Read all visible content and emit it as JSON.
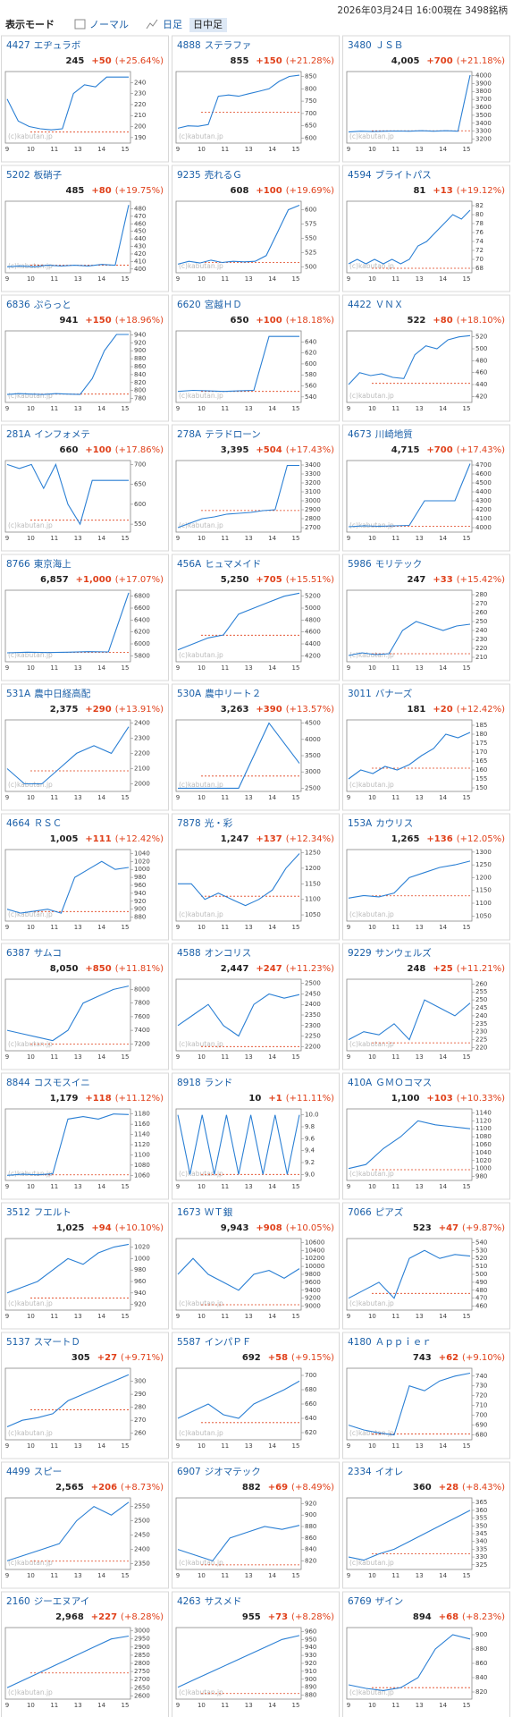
{
  "header": {
    "mode_label": "表示モード",
    "options": [
      "ノーマル",
      "日足",
      "日中足"
    ],
    "timestamp": "2026年03月24日 16:00現在 3498銘柄"
  },
  "watermark": "(c)kabutan.jp",
  "time_labels": [
    "9",
    "10",
    "11",
    "13",
    "14",
    "15"
  ],
  "cards": [
    {
      "code": "4427",
      "name": "エヂュラボ",
      "price": "245",
      "change": "+50",
      "pct": "(+25.64%)",
      "ylim": [
        185,
        250
      ],
      "yticks": [
        190,
        200,
        210,
        220,
        230,
        240
      ],
      "prev": 195,
      "values": [
        225,
        205,
        200,
        198,
        197,
        198,
        230,
        238,
        236,
        245,
        245,
        245
      ]
    },
    {
      "code": "4888",
      "name": "ステラファ",
      "price": "855",
      "change": "+150",
      "pct": "(+21.28%)",
      "ylim": [
        580,
        870
      ],
      "yticks": [
        600,
        650,
        700,
        750,
        800,
        850
      ],
      "prev": 705,
      "values": [
        640,
        650,
        648,
        655,
        770,
        775,
        770,
        780,
        790,
        800,
        830,
        850,
        855
      ]
    },
    {
      "code": "3480",
      "name": "ＪＳＢ",
      "price": "4,005",
      "change": "+700",
      "pct": "(+21.18%)",
      "ylim": [
        3150,
        4050
      ],
      "yticks": [
        3200,
        3300,
        3400,
        3500,
        3600,
        3700,
        3800,
        3900,
        4000
      ],
      "prev": 3305,
      "values": [
        3290,
        3300,
        3295,
        3300,
        3302,
        3300,
        3305,
        3300,
        3305,
        3300,
        4005
      ]
    },
    {
      "code": "5202",
      "name": "板硝子",
      "price": "485",
      "change": "+80",
      "pct": "(+19.75%)",
      "ylim": [
        395,
        490
      ],
      "yticks": [
        400,
        410,
        420,
        430,
        440,
        450,
        460,
        470,
        480
      ],
      "prev": 405,
      "values": [
        403,
        404,
        403,
        405,
        404,
        405,
        404,
        406,
        405,
        485
      ]
    },
    {
      "code": "9235",
      "name": "売れるＧ",
      "price": "608",
      "change": "+100",
      "pct": "(+19.69%)",
      "ylim": [
        490,
        615
      ],
      "yticks": [
        500,
        525,
        550,
        575,
        600
      ],
      "prev": 508,
      "values": [
        505,
        510,
        507,
        512,
        508,
        510,
        509,
        510,
        520,
        560,
        600,
        608
      ]
    },
    {
      "code": "4594",
      "name": "ブライトパス",
      "price": "81",
      "change": "+13",
      "pct": "(+19.12%)",
      "ylim": [
        67,
        83
      ],
      "yticks": [
        68,
        70,
        72,
        74,
        76,
        78,
        80,
        82
      ],
      "prev": 68,
      "values": [
        69,
        70,
        69,
        70,
        69,
        70,
        69,
        70,
        73,
        74,
        76,
        78,
        80,
        79,
        81
      ]
    },
    {
      "code": "6836",
      "name": "ぷらっと",
      "price": "941",
      "change": "+150",
      "pct": "(+18.96%)",
      "ylim": [
        770,
        950
      ],
      "yticks": [
        780,
        800,
        820,
        840,
        860,
        880,
        900,
        920,
        940
      ],
      "prev": 791,
      "values": [
        790,
        792,
        791,
        790,
        792,
        791,
        790,
        830,
        900,
        941,
        941
      ]
    },
    {
      "code": "6620",
      "name": "宮越ＨＤ",
      "price": "650",
      "change": "+100",
      "pct": "(+18.18%)",
      "ylim": [
        530,
        660
      ],
      "yticks": [
        540,
        560,
        580,
        600,
        620,
        640
      ],
      "prev": 550,
      "values": [
        550,
        552,
        551,
        550,
        551,
        552,
        650,
        650,
        650
      ]
    },
    {
      "code": "4422",
      "name": "ＶＮＸ",
      "price": "522",
      "change": "+80",
      "pct": "(+18.10%)",
      "ylim": [
        410,
        530
      ],
      "yticks": [
        420,
        440,
        460,
        480,
        500,
        520
      ],
      "prev": 442,
      "values": [
        440,
        460,
        455,
        458,
        452,
        450,
        490,
        505,
        500,
        515,
        520,
        522
      ]
    },
    {
      "code": "281A",
      "name": "インフォメテ",
      "price": "660",
      "change": "+100",
      "pct": "(+17.86%)",
      "ylim": [
        530,
        710
      ],
      "yticks": [
        550,
        600,
        650,
        700
      ],
      "prev": 560,
      "values": [
        700,
        690,
        700,
        640,
        700,
        600,
        550,
        660,
        660,
        660,
        660
      ]
    },
    {
      "code": "278A",
      "name": "テラドローン",
      "price": "3,395",
      "change": "+504",
      "pct": "(+17.43%)",
      "ylim": [
        2650,
        3450
      ],
      "yticks": [
        2700,
        2800,
        2900,
        3000,
        3100,
        3200,
        3300,
        3400
      ],
      "prev": 2891,
      "values": [
        2700,
        2750,
        2800,
        2820,
        2850,
        2860,
        2870,
        2890,
        2900,
        3395,
        3395
      ]
    },
    {
      "code": "4673",
      "name": "川崎地質",
      "price": "4,715",
      "change": "+700",
      "pct": "(+17.43%)",
      "ylim": [
        3950,
        4750
      ],
      "yticks": [
        4000,
        4100,
        4200,
        4300,
        4400,
        4500,
        4600,
        4700
      ],
      "prev": 4015,
      "values": [
        4010,
        4020,
        4015,
        4020,
        4025,
        4300,
        4300,
        4300,
        4715
      ]
    },
    {
      "code": "8766",
      "name": "東京海上",
      "price": "6,857",
      "change": "+1,000",
      "pct": "(+17.07%)",
      "ylim": [
        5700,
        6900
      ],
      "yticks": [
        5800,
        6000,
        6200,
        6400,
        6600,
        6800
      ],
      "prev": 5857,
      "values": [
        5850,
        5860,
        5855,
        5860,
        5870,
        5865,
        6857
      ]
    },
    {
      "code": "456A",
      "name": "ヒュマメイド",
      "price": "5,250",
      "change": "+705",
      "pct": "(+15.51%)",
      "ylim": [
        4100,
        5300
      ],
      "yticks": [
        4200,
        4400,
        4600,
        4800,
        5000,
        5200
      ],
      "prev": 4545,
      "values": [
        4300,
        4400,
        4500,
        4550,
        4900,
        5000,
        5100,
        5200,
        5250
      ]
    },
    {
      "code": "5986",
      "name": "モリテック",
      "price": "247",
      "change": "+33",
      "pct": "(+15.42%)",
      "ylim": [
        205,
        285
      ],
      "yticks": [
        210,
        220,
        230,
        240,
        250,
        260,
        270,
        280
      ],
      "prev": 214,
      "values": [
        212,
        215,
        213,
        214,
        240,
        250,
        245,
        240,
        245,
        247
      ]
    },
    {
      "code": "531A",
      "name": "農中日経高配",
      "price": "2,375",
      "change": "+290",
      "pct": "(+13.91%)",
      "ylim": [
        1950,
        2420
      ],
      "yticks": [
        2000,
        2100,
        2200,
        2300,
        2400
      ],
      "prev": 2085,
      "values": [
        2100,
        2000,
        2000,
        2100,
        2200,
        2250,
        2200,
        2375
      ]
    },
    {
      "code": "530A",
      "name": "農中リート２",
      "price": "3,263",
      "change": "+390",
      "pct": "(+13.57%)",
      "ylim": [
        2400,
        4600
      ],
      "yticks": [
        2500,
        3000,
        3500,
        4000,
        4500
      ],
      "prev": 2873,
      "values": [
        2500,
        2500,
        2500,
        4500,
        3263
      ]
    },
    {
      "code": "3011",
      "name": "バナーズ",
      "price": "181",
      "change": "+20",
      "pct": "(+12.42%)",
      "ylim": [
        148,
        188
      ],
      "yticks": [
        150,
        155,
        160,
        165,
        170,
        175,
        180,
        185
      ],
      "prev": 161,
      "values": [
        155,
        160,
        158,
        162,
        160,
        163,
        168,
        172,
        180,
        178,
        181
      ]
    },
    {
      "code": "4664",
      "name": "ＲＳＣ",
      "price": "1,005",
      "change": "+111",
      "pct": "(+12.42%)",
      "ylim": [
        870,
        1050
      ],
      "yticks": [
        880,
        900,
        920,
        940,
        960,
        980,
        1000,
        1020,
        1040
      ],
      "prev": 894,
      "values": [
        900,
        890,
        895,
        900,
        890,
        980,
        1000,
        1020,
        1000,
        1005
      ]
    },
    {
      "code": "7878",
      "name": "光・彩",
      "price": "1,247",
      "change": "+137",
      "pct": "(+12.34%)",
      "ylim": [
        1030,
        1260
      ],
      "yticks": [
        1050,
        1100,
        1150,
        1200,
        1250
      ],
      "prev": 1110,
      "values": [
        1150,
        1150,
        1100,
        1120,
        1100,
        1080,
        1100,
        1130,
        1200,
        1247
      ]
    },
    {
      "code": "153A",
      "name": "カウリス",
      "price": "1,265",
      "change": "+136",
      "pct": "(+12.05%)",
      "ylim": [
        1030,
        1310
      ],
      "yticks": [
        1050,
        1100,
        1150,
        1200,
        1250,
        1300
      ],
      "prev": 1129,
      "values": [
        1120,
        1130,
        1125,
        1140,
        1200,
        1220,
        1240,
        1250,
        1265
      ]
    },
    {
      "code": "6387",
      "name": "サムコ",
      "price": "8,050",
      "change": "+850",
      "pct": "(+11.81%)",
      "ylim": [
        7100,
        8150
      ],
      "yticks": [
        7200,
        7400,
        7600,
        7800,
        8000
      ],
      "prev": 7200,
      "values": [
        7400,
        7350,
        7300,
        7250,
        7400,
        7800,
        7900,
        8000,
        8050
      ]
    },
    {
      "code": "4588",
      "name": "オンコリス",
      "price": "2,447",
      "change": "+247",
      "pct": "(+11.23%)",
      "ylim": [
        2180,
        2520
      ],
      "yticks": [
        2200,
        2250,
        2300,
        2350,
        2400,
        2450,
        2500
      ],
      "prev": 2200,
      "values": [
        2300,
        2350,
        2400,
        2300,
        2250,
        2400,
        2450,
        2430,
        2447
      ]
    },
    {
      "code": "9229",
      "name": "サンウェルズ",
      "price": "248",
      "change": "+25",
      "pct": "(+11.21%)",
      "ylim": [
        218,
        263
      ],
      "yticks": [
        220,
        225,
        230,
        235,
        240,
        245,
        250,
        255,
        260
      ],
      "prev": 223,
      "values": [
        225,
        230,
        228,
        235,
        225,
        250,
        245,
        240,
        248
      ]
    },
    {
      "code": "8844",
      "name": "コスモスイニ",
      "price": "1,179",
      "change": "+118",
      "pct": "(+11.12%)",
      "ylim": [
        1050,
        1190
      ],
      "yticks": [
        1060,
        1080,
        1100,
        1120,
        1140,
        1160,
        1180
      ],
      "prev": 1061,
      "values": [
        1060,
        1062,
        1061,
        1063,
        1170,
        1175,
        1170,
        1180,
        1179
      ]
    },
    {
      "code": "8918",
      "name": "ランド",
      "price": "10",
      "change": "+1",
      "pct": "(+11.11%)",
      "ylim": [
        8.9,
        10.1
      ],
      "yticks": [
        {
          "value": 9,
          "label": "9.0"
        },
        9.2,
        9.4,
        9.6,
        9.8,
        {
          "value": 10,
          "label": "10.0"
        }
      ],
      "prev": 9,
      "values": [
        10,
        9,
        10,
        9,
        10,
        9,
        10,
        9,
        10,
        9,
        10
      ]
    },
    {
      "code": "410A",
      "name": "ＧＭＯコマス",
      "price": "1,100",
      "change": "+103",
      "pct": "(+10.33%)",
      "ylim": [
        970,
        1150
      ],
      "yticks": [
        980,
        1000,
        1020,
        1040,
        1060,
        1080,
        1100,
        1120,
        1140
      ],
      "prev": 997,
      "values": [
        1000,
        1010,
        1050,
        1080,
        1120,
        1110,
        1105,
        1100
      ]
    },
    {
      "code": "3512",
      "name": "フエルト",
      "price": "1,025",
      "change": "+94",
      "pct": "(+10.10%)",
      "ylim": [
        910,
        1035
      ],
      "yticks": [
        920,
        940,
        960,
        980,
        1000,
        1020
      ],
      "prev": 931,
      "values": [
        940,
        950,
        960,
        980,
        1000,
        990,
        1010,
        1020,
        1025
      ]
    },
    {
      "code": "1673",
      "name": "ＷＴ銀",
      "price": "9,943",
      "change": "+908",
      "pct": "(+10.05%)",
      "ylim": [
        8900,
        10700
      ],
      "yticks": [
        9000,
        9200,
        9400,
        9600,
        9800,
        10000,
        10200,
        10400,
        10600
      ],
      "prev": 9035,
      "values": [
        9800,
        10200,
        9800,
        9600,
        9400,
        9800,
        9900,
        9700,
        9943
      ]
    },
    {
      "code": "7066",
      "name": "ピアズ",
      "price": "523",
      "change": "+47",
      "pct": "(+9.87%)",
      "ylim": [
        455,
        545
      ],
      "yticks": [
        460,
        470,
        480,
        490,
        500,
        510,
        520,
        530,
        540
      ],
      "prev": 476,
      "values": [
        470,
        480,
        490,
        470,
        520,
        530,
        520,
        525,
        523
      ]
    },
    {
      "code": "5137",
      "name": "スマートＤ",
      "price": "305",
      "change": "+27",
      "pct": "(+9.71%)",
      "ylim": [
        255,
        310
      ],
      "yticks": [
        260,
        270,
        280,
        290,
        300
      ],
      "prev": 278,
      "values": [
        265,
        270,
        272,
        275,
        285,
        290,
        295,
        300,
        305
      ]
    },
    {
      "code": "5587",
      "name": "インパＰＦ",
      "price": "692",
      "change": "+58",
      "pct": "(+9.15%)",
      "ylim": [
        610,
        710
      ],
      "yticks": [
        620,
        640,
        660,
        680,
        700
      ],
      "prev": 634,
      "values": [
        640,
        650,
        660,
        645,
        640,
        660,
        670,
        680,
        692
      ]
    },
    {
      "code": "4180",
      "name": "Ａｐｐｉｅｒ",
      "price": "743",
      "change": "+62",
      "pct": "(+9.10%)",
      "ylim": [
        675,
        748
      ],
      "yticks": [
        680,
        690,
        700,
        710,
        720,
        730,
        740
      ],
      "prev": 681,
      "values": [
        690,
        685,
        682,
        680,
        730,
        725,
        735,
        740,
        743
      ]
    },
    {
      "code": "4499",
      "name": "スピー",
      "price": "2,565",
      "change": "+206",
      "pct": "(+8.73%)",
      "ylim": [
        2330,
        2580
      ],
      "yticks": [
        2350,
        2400,
        2450,
        2500,
        2550
      ],
      "prev": 2359,
      "values": [
        2360,
        2380,
        2400,
        2420,
        2500,
        2550,
        2520,
        2565
      ]
    },
    {
      "code": "6907",
      "name": "ジオマテック",
      "price": "882",
      "change": "+69",
      "pct": "(+8.49%)",
      "ylim": [
        805,
        930
      ],
      "yticks": [
        820,
        840,
        860,
        880,
        900,
        920
      ],
      "prev": 813,
      "values": [
        840,
        830,
        820,
        860,
        870,
        880,
        875,
        882
      ]
    },
    {
      "code": "2334",
      "name": "イオレ",
      "price": "360",
      "change": "+28",
      "pct": "(+8.43%)",
      "ylim": [
        322,
        368
      ],
      "yticks": [
        325,
        330,
        335,
        340,
        345,
        350,
        355,
        360,
        365
      ],
      "prev": 332,
      "values": [
        330,
        328,
        332,
        335,
        340,
        345,
        350,
        355,
        360
      ]
    },
    {
      "code": "2160",
      "name": "ジーエヌアイ",
      "price": "2,968",
      "change": "+227",
      "pct": "(+8.28%)",
      "ylim": [
        2580,
        3020
      ],
      "yticks": [
        2600,
        2650,
        2700,
        2750,
        2800,
        2850,
        2900,
        2950,
        3000
      ],
      "prev": 2741,
      "values": [
        2650,
        2700,
        2750,
        2800,
        2850,
        2900,
        2950,
        2968
      ]
    },
    {
      "code": "4263",
      "name": "サスメド",
      "price": "955",
      "change": "+73",
      "pct": "(+8.28%)",
      "ylim": [
        875,
        965
      ],
      "yticks": [
        880,
        890,
        900,
        910,
        920,
        930,
        940,
        950,
        960
      ],
      "prev": 882,
      "values": [
        890,
        900,
        910,
        920,
        930,
        940,
        950,
        955
      ]
    },
    {
      "code": "6769",
      "name": "ザイン",
      "price": "894",
      "change": "+68",
      "pct": "(+8.23%)",
      "ylim": [
        810,
        910
      ],
      "yticks": [
        820,
        840,
        860,
        880,
        900
      ],
      "prev": 826,
      "values": [
        830,
        825,
        822,
        826,
        840,
        880,
        900,
        894
      ]
    }
  ]
}
